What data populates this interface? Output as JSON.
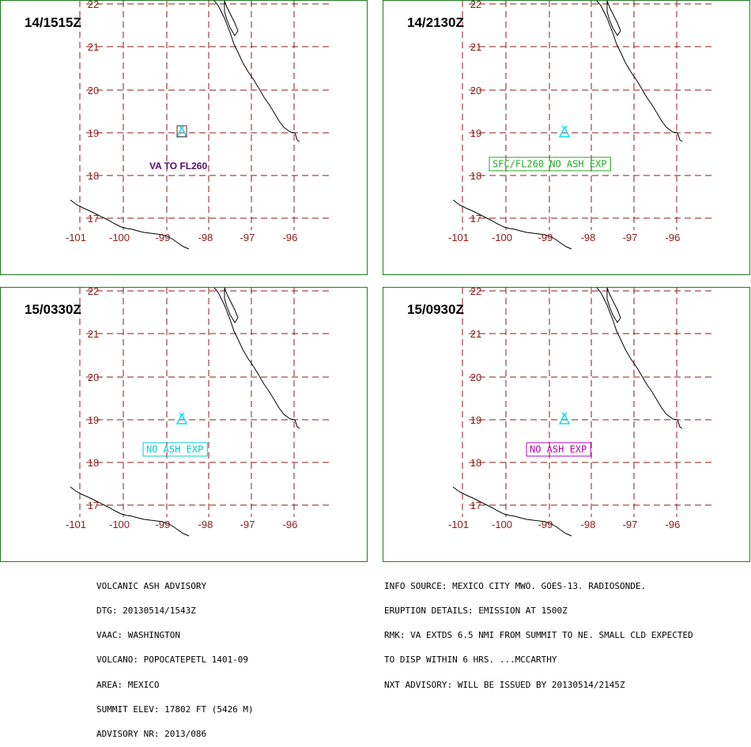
{
  "colors": {
    "grid": "#8b1a1a",
    "coast": "#000000",
    "volcano": "#00e5ee",
    "frame": "#1f7a1f"
  },
  "map": {
    "lon_ticks": [
      "-101",
      "-100",
      "-99",
      "-98",
      "-97",
      "-96"
    ],
    "lat_ticks": [
      "22",
      "21",
      "20",
      "19",
      "18",
      "17"
    ]
  },
  "panels": [
    {
      "time": "14/1515Z",
      "label": "VA TO FL260",
      "label_color": "#5a0a6e",
      "boxed": false
    },
    {
      "time": "14/2130Z",
      "label": "SFC/FL260 NO ASH EXP",
      "label_color": "#22aa22",
      "boxed": true
    },
    {
      "time": "15/0330Z",
      "label": "NO ASH EXP",
      "label_color": "#00cccc",
      "boxed": true
    },
    {
      "time": "15/0930Z",
      "label": "NO ASH EXP",
      "label_color": "#bb00bb",
      "boxed": true
    }
  ],
  "advisory_left": [
    "VOLCANIC ASH ADVISORY",
    "DTG: 20130514/1543Z",
    "VAAC: WASHINGTON",
    "VOLCANO: POPOCATEPETL 1401-09",
    "AREA: MEXICO",
    "SUMMIT ELEV: 17802 FT (5426 M)",
    "ADVISORY NR: 2013/086"
  ],
  "advisory_right": [
    "INFO SOURCE: MEXICO CITY MWO. GOES-13. RADIOSONDE.",
    "ERUPTION DETAILS: EMISSION AT 1500Z",
    "RMK: VA EXTDS 6.5 NMI FROM SUMMIT TO NE. SMALL CLD EXPECTED",
    "TO DISP WITHIN 6 HRS. ...MCCARTHY",
    "NXT ADVISORY: WILL BE ISSUED BY 20130514/2145Z"
  ]
}
